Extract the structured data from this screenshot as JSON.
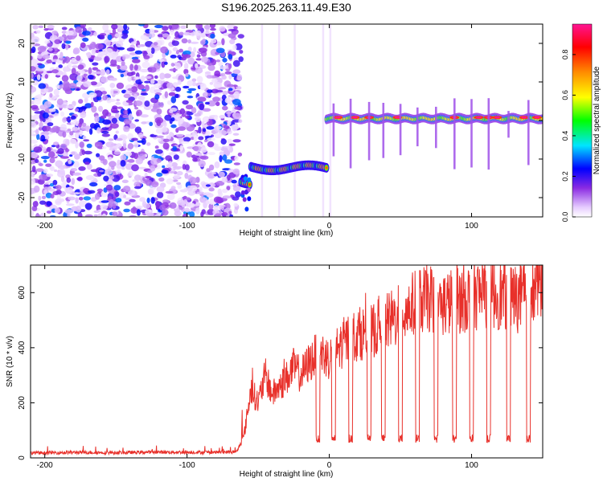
{
  "title": "S196.2025.263.11.49.E30",
  "chart_data": [
    {
      "type": "heatmap",
      "xlabel": "Height of straight line (km)",
      "ylabel": "Frequency (Hz)",
      "xlim": [
        -210,
        150
      ],
      "ylim": [
        -25,
        25
      ],
      "x_ticks": [
        -200,
        -100,
        0,
        100
      ],
      "y_ticks": [
        -20,
        -10,
        0,
        10,
        20
      ],
      "colorbar": {
        "label": "Normalized spectral amplitude",
        "range": [
          0.0,
          0.95
        ],
        "ticks": [
          0.0,
          0.2,
          0.4,
          0.6,
          0.8
        ],
        "tick_labels": [
          "0.0",
          "0.2",
          "0.4",
          "0.6",
          "0.8"
        ],
        "colors": [
          "#ffffff",
          "#e6ccff",
          "#8a2be2",
          "#0000ff",
          "#00e5ff",
          "#00ff00",
          "#ffff00",
          "#ff8c00",
          "#ff0000",
          "#ff1493"
        ]
      },
      "segments": [
        {
          "name": "noise",
          "x_range": [
            -210,
            -62
          ],
          "freq": null,
          "peak_amplitude": 0.3
        },
        {
          "name": "weak signal",
          "x_range": [
            -62,
            -2
          ],
          "freq_start": -16,
          "freq_end": -12,
          "peak_amplitude": 0.95
        },
        {
          "name": "strong signal",
          "x_range": [
            -2,
            150
          ],
          "freq": 0.5,
          "peak_amplitude": 0.95
        }
      ]
    },
    {
      "type": "line",
      "xlabel": "Height of straight line (km)",
      "ylabel": "SNR (10 * v/v)",
      "xlim": [
        -210,
        150
      ],
      "ylim": [
        0,
        700
      ],
      "x_ticks": [
        -200,
        -100,
        0,
        100
      ],
      "y_ticks": [
        0,
        200,
        400,
        600
      ],
      "color": "#e8302a",
      "series": [
        {
          "name": "SNR",
          "x": [
            -210,
            -180,
            -150,
            -120,
            -90,
            -65,
            -60,
            -55,
            -50,
            -45,
            -40,
            -35,
            -30,
            -25,
            -20,
            -15,
            -10,
            -5,
            0,
            10,
            20,
            30,
            40,
            50,
            60,
            70,
            80,
            90,
            100,
            110,
            120,
            130,
            140,
            150
          ],
          "values": [
            18,
            20,
            19,
            21,
            20,
            22,
            80,
            250,
            200,
            300,
            230,
            260,
            290,
            330,
            300,
            340,
            370,
            380,
            360,
            420,
            450,
            460,
            490,
            520,
            560,
            580,
            560,
            570,
            590,
            600,
            590,
            580,
            580,
            650
          ]
        }
      ],
      "dropouts_x": [
        -8,
        3,
        15,
        28,
        38,
        50,
        62,
        75,
        88,
        100,
        112,
        126,
        140
      ],
      "dropout_level": 70
    }
  ]
}
